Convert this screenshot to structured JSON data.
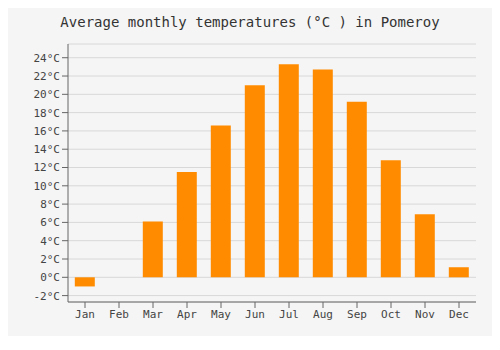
{
  "chart_data": {
    "type": "bar",
    "title": "Average monthly temperatures (°C ) in Pomeroy",
    "categories": [
      "Jan",
      "Feb",
      "Mar",
      "Apr",
      "May",
      "Jun",
      "Jul",
      "Aug",
      "Sep",
      "Oct",
      "Nov",
      "Dec"
    ],
    "values": [
      -1.0,
      0.0,
      6.1,
      11.5,
      16.6,
      21.0,
      23.3,
      22.7,
      19.2,
      12.8,
      6.9,
      1.1
    ],
    "color": "#FF8C00",
    "ylim": [
      -2.7,
      25.5
    ],
    "yticks": [
      {
        "value": -2,
        "label": "-2°C"
      },
      {
        "value": 0,
        "label": "0°C"
      },
      {
        "value": 2,
        "label": "2°C"
      },
      {
        "value": 4,
        "label": "4°C"
      },
      {
        "value": 6,
        "label": "6°C"
      },
      {
        "value": 8,
        "label": "8°C"
      },
      {
        "value": 10,
        "label": "10°C"
      },
      {
        "value": 12,
        "label": "12°C"
      },
      {
        "value": 14,
        "label": "14°C"
      },
      {
        "value": 16,
        "label": "16°C"
      },
      {
        "value": 18,
        "label": "18°C"
      },
      {
        "value": 20,
        "label": "20°C"
      },
      {
        "value": 22,
        "label": "22°C"
      },
      {
        "value": 24,
        "label": "24°C"
      }
    ],
    "grid": true
  }
}
